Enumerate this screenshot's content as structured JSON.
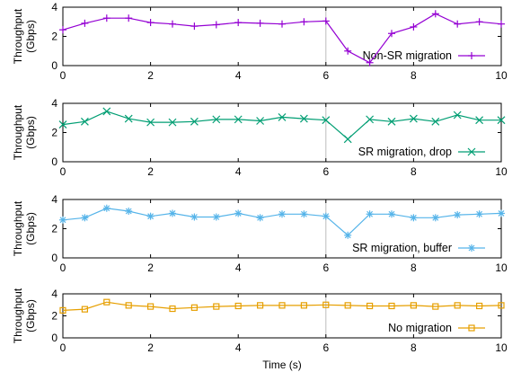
{
  "chart_data": [
    {
      "type": "line",
      "ylabel": "Throughput\n(Gbps)",
      "xlim": [
        0,
        10
      ],
      "ylim": [
        0,
        4
      ],
      "xticks": [
        "0",
        "2",
        "4",
        "6",
        "8",
        "10"
      ],
      "yticks": [
        "0",
        "2",
        "4"
      ],
      "legend_position": "bottom-right",
      "grid": "vertical-at-6",
      "series": [
        {
          "name": "Non-SR migration",
          "color": "#9400d3",
          "marker": "plus",
          "x": [
            0,
            0.5,
            1,
            1.5,
            2,
            2.5,
            3,
            3.5,
            4,
            4.5,
            5,
            5.5,
            6,
            6.5,
            7,
            7.5,
            8,
            8.5,
            9,
            9.5,
            10
          ],
          "y": [
            2.45,
            2.9,
            3.25,
            3.25,
            2.95,
            2.85,
            2.7,
            2.8,
            2.95,
            2.9,
            2.85,
            3.0,
            3.05,
            1.0,
            0.2,
            2.2,
            2.65,
            3.55,
            2.85,
            3.0,
            2.85
          ]
        }
      ]
    },
    {
      "type": "line",
      "ylabel": "Throughput\n(Gbps)",
      "xlim": [
        0,
        10
      ],
      "ylim": [
        0,
        4
      ],
      "xticks": [
        "0",
        "2",
        "4",
        "6",
        "8",
        "10"
      ],
      "yticks": [
        "0",
        "2",
        "4"
      ],
      "legend_position": "bottom-right",
      "grid": "vertical-at-6",
      "series": [
        {
          "name": "SR migration, drop",
          "color": "#009e73",
          "marker": "x",
          "x": [
            0,
            0.5,
            1,
            1.5,
            2,
            2.5,
            3,
            3.5,
            4,
            4.5,
            5,
            5.5,
            6,
            6.5,
            7,
            7.5,
            8,
            8.5,
            9,
            9.5,
            10
          ],
          "y": [
            2.55,
            2.75,
            3.45,
            2.95,
            2.7,
            2.7,
            2.75,
            2.9,
            2.9,
            2.8,
            3.05,
            2.95,
            2.85,
            1.55,
            2.9,
            2.75,
            2.95,
            2.75,
            3.2,
            2.85,
            2.85
          ]
        }
      ]
    },
    {
      "type": "line",
      "ylabel": "Throughput\n(Gbps)",
      "xlim": [
        0,
        10
      ],
      "ylim": [
        0,
        4
      ],
      "xticks": [
        "0",
        "2",
        "4",
        "6",
        "8",
        "10"
      ],
      "yticks": [
        "0",
        "2",
        "4"
      ],
      "legend_position": "bottom-right",
      "grid": "vertical-at-6",
      "series": [
        {
          "name": "SR migration, buffer",
          "color": "#56b4e9",
          "marker": "star",
          "x": [
            0,
            0.5,
            1,
            1.5,
            2,
            2.5,
            3,
            3.5,
            4,
            4.5,
            5,
            5.5,
            6,
            6.5,
            7,
            7.5,
            8,
            8.5,
            9,
            9.5,
            10
          ],
          "y": [
            2.6,
            2.75,
            3.4,
            3.2,
            2.85,
            3.05,
            2.8,
            2.8,
            3.05,
            2.75,
            3.0,
            3.0,
            2.85,
            1.55,
            3.0,
            3.0,
            2.75,
            2.75,
            2.95,
            3.0,
            3.05
          ]
        }
      ]
    },
    {
      "type": "line",
      "ylabel": "Throughput\n(Gbps)",
      "xlabel": "Time (s)",
      "xlim": [
        0,
        10
      ],
      "ylim": [
        0,
        4
      ],
      "xticks": [
        "0",
        "2",
        "4",
        "6",
        "8",
        "10"
      ],
      "yticks": [
        "0",
        "2",
        "4"
      ],
      "legend_position": "bottom-right",
      "grid": "vertical-at-6",
      "series": [
        {
          "name": "No migration",
          "color": "#e69f00",
          "marker": "square",
          "x": [
            0,
            0.5,
            1,
            1.5,
            2,
            2.5,
            3,
            3.5,
            4,
            4.5,
            5,
            5.5,
            6,
            6.5,
            7,
            7.5,
            8,
            8.5,
            9,
            9.5,
            10
          ],
          "y": [
            2.5,
            2.6,
            3.25,
            2.95,
            2.85,
            2.65,
            2.75,
            2.85,
            2.9,
            2.95,
            2.95,
            2.95,
            3.0,
            2.95,
            2.9,
            2.9,
            2.95,
            2.85,
            2.95,
            2.9,
            2.95
          ]
        }
      ]
    }
  ]
}
